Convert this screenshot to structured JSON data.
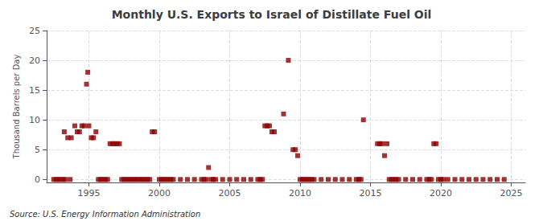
{
  "chart_data": {
    "type": "scatter",
    "title": "Monthly U.S. Exports to Israel of Distillate Fuel Oil",
    "ylabel": "Thousand Barrels per Day",
    "annotations": [
      "Source: U.S. Energy Information Administration"
    ],
    "color": "#8b0000",
    "marker": "square",
    "grid": true,
    "xlim": [
      1992.0,
      2026.0
    ],
    "ylim": [
      -0.5,
      25
    ],
    "xticks": [
      1995,
      2000,
      2005,
      2010,
      2015,
      2020,
      2025
    ],
    "yticks": [
      0,
      5,
      10,
      15,
      20,
      25
    ],
    "x": [
      1993.25,
      1993.5,
      1993.75,
      1994.0,
      1994.17,
      1994.33,
      1994.5,
      1994.67,
      1994.83,
      1994.92,
      1995.0,
      1995.17,
      1995.33,
      1995.5,
      1996.5,
      1996.67,
      1996.83,
      1997.0,
      1997.17,
      1999.5,
      1999.67,
      2003.5,
      2007.5,
      2007.67,
      2007.83,
      2008.0,
      2008.17,
      2008.83,
      2009.17,
      2009.5,
      2009.67,
      2009.83,
      2014.5,
      2015.5,
      2015.67,
      2015.83,
      2016.0,
      2016.17,
      2019.5,
      2019.67,
      1992.5,
      1992.67,
      1992.83,
      1993.0,
      1993.17,
      1993.33,
      1993.67,
      1995.67,
      1995.83,
      1996.0,
      1996.17,
      1996.33,
      1997.33,
      1997.5,
      1997.67,
      1997.83,
      1998.0,
      1998.17,
      1998.33,
      1998.5,
      1998.67,
      1998.83,
      1999.0,
      1999.17,
      1999.33,
      2000.0,
      2000.17,
      2000.33,
      2000.5,
      2000.67,
      2000.83,
      2001.0,
      2001.5,
      2002.0,
      2002.5,
      2003.0,
      2003.17,
      2003.33,
      2003.67,
      2003.83,
      2004.0,
      2004.5,
      2005.0,
      2005.5,
      2006.0,
      2006.5,
      2007.0,
      2007.17,
      2007.33,
      2010.0,
      2010.17,
      2010.33,
      2010.5,
      2010.67,
      2010.83,
      2011.0,
      2011.5,
      2012.0,
      2012.5,
      2013.0,
      2013.5,
      2014.0,
      2014.17,
      2014.33,
      2016.33,
      2016.5,
      2016.67,
      2016.83,
      2017.0,
      2017.5,
      2018.0,
      2018.5,
      2019.0,
      2019.17,
      2019.33,
      2019.83,
      2020.0,
      2020.17,
      2020.5,
      2021.0,
      2021.5,
      2022.0,
      2022.5,
      2023.0,
      2023.5,
      2024.0,
      2024.5
    ],
    "values": [
      8,
      7,
      7,
      9,
      8,
      8,
      9,
      9,
      16,
      18,
      9,
      7,
      7,
      8,
      6,
      6,
      6,
      6,
      6,
      8,
      8,
      2,
      9,
      9,
      9,
      8,
      8,
      11,
      20,
      5,
      5,
      4,
      10,
      6,
      6,
      6,
      4,
      6,
      6,
      6,
      0,
      0,
      0,
      0,
      0,
      0,
      0,
      0,
      0,
      0,
      0,
      0,
      0,
      0,
      0,
      0,
      0,
      0,
      0,
      0,
      0,
      0,
      0,
      0,
      0,
      0,
      0,
      0,
      0,
      0,
      0,
      0,
      0,
      0,
      0,
      0,
      0,
      0,
      0,
      0,
      0,
      0,
      0,
      0,
      0,
      0,
      0,
      0,
      0,
      0,
      0,
      0,
      0,
      0,
      0,
      0,
      0,
      0,
      0,
      0,
      0,
      0,
      0,
      0,
      0,
      0,
      0,
      0,
      0,
      0,
      0,
      0,
      0,
      0,
      0,
      0,
      0,
      0,
      0,
      0,
      0,
      0,
      0,
      0,
      0,
      0,
      0
    ]
  }
}
